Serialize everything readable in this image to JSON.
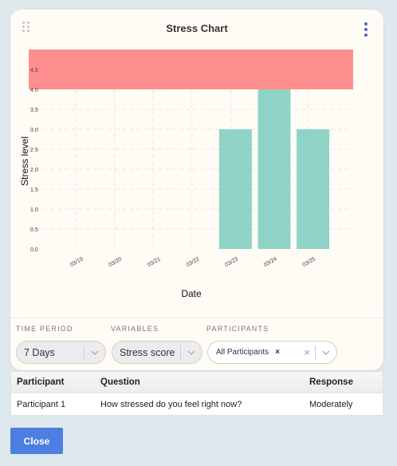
{
  "card": {
    "title": "Stress Chart"
  },
  "chart_data": {
    "type": "bar",
    "categories": [
      "03/19",
      "03/20",
      "03/21",
      "03/22",
      "03/23",
      "03/24",
      "03/25"
    ],
    "values": [
      null,
      null,
      null,
      null,
      3.0,
      4.0,
      3.0
    ],
    "xlabel": "Date",
    "ylabel": "Stress level",
    "ylim": [
      0,
      5
    ],
    "yticks": [
      "0.0",
      "0.5",
      "1.0",
      "1.5",
      "2.0",
      "2.5",
      "3.0",
      "3.5",
      "4.0",
      "4.5"
    ],
    "highlight_band": [
      4,
      5
    ],
    "grid": true,
    "colors": {
      "bar": "#8fd3c7",
      "band": "#ff8f8e"
    }
  },
  "filters": {
    "time_period": {
      "label": "TIME PERIOD",
      "value": "7 Days"
    },
    "variables": {
      "label": "VARIABLES",
      "value": "Stress score"
    },
    "participants": {
      "label": "PARTICIPANTS",
      "chip": "All Participants"
    }
  },
  "table": {
    "headers": [
      "Participant",
      "Question",
      "Response"
    ],
    "rows": [
      [
        "Participant 1",
        "How stressed do you feel right now?",
        "Moderately"
      ]
    ]
  },
  "close_label": "Close"
}
